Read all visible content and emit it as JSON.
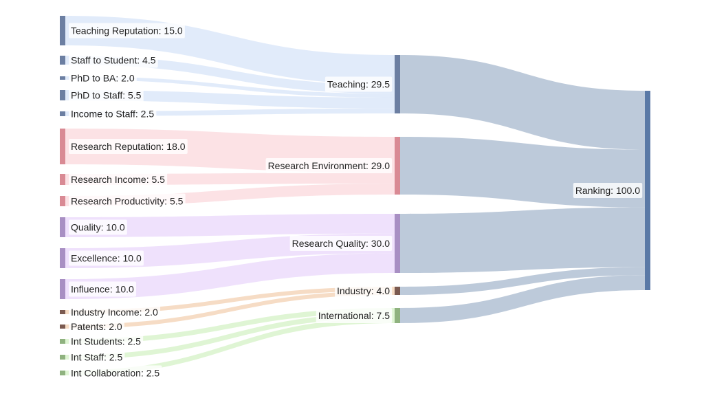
{
  "chart_data": {
    "type": "sankey",
    "nodes": [
      {
        "id": "teaching_rep",
        "label": "Teaching Reputation: 15.0",
        "name": "Teaching Reputation",
        "value": 15.0,
        "group": "teaching"
      },
      {
        "id": "staff_student",
        "label": "Staff to Student: 4.5",
        "name": "Staff to Student",
        "value": 4.5,
        "group": "teaching"
      },
      {
        "id": "phd_ba",
        "label": "PhD to BA: 2.0",
        "name": "PhD to BA",
        "value": 2.0,
        "group": "teaching"
      },
      {
        "id": "phd_staff",
        "label": "PhD to Staff: 5.5",
        "name": "PhD to Staff",
        "value": 5.5,
        "group": "teaching"
      },
      {
        "id": "income_staff",
        "label": "Income to Staff: 2.5",
        "name": "Income to Staff",
        "value": 2.5,
        "group": "teaching"
      },
      {
        "id": "research_rep",
        "label": "Research Reputation: 18.0",
        "name": "Research Reputation",
        "value": 18.0,
        "group": "research_env"
      },
      {
        "id": "research_income",
        "label": "Research Income: 5.5",
        "name": "Research Income",
        "value": 5.5,
        "group": "research_env"
      },
      {
        "id": "research_prod",
        "label": "Research Productivity: 5.5",
        "name": "Research Productivity",
        "value": 5.5,
        "group": "research_env"
      },
      {
        "id": "quality",
        "label": "Quality: 10.0",
        "name": "Quality",
        "value": 10.0,
        "group": "research_quality"
      },
      {
        "id": "excellence",
        "label": "Excellence: 10.0",
        "name": "Excellence",
        "value": 10.0,
        "group": "research_quality"
      },
      {
        "id": "influence",
        "label": "Influence: 10.0",
        "name": "Influence",
        "value": 10.0,
        "group": "research_quality"
      },
      {
        "id": "industry_income",
        "label": "Industry Income: 2.0",
        "name": "Industry Income",
        "value": 2.0,
        "group": "industry"
      },
      {
        "id": "patents",
        "label": "Patents: 2.0",
        "name": "Patents",
        "value": 2.0,
        "group": "industry"
      },
      {
        "id": "int_students",
        "label": "Int Students: 2.5",
        "name": "Int Students",
        "value": 2.5,
        "group": "international"
      },
      {
        "id": "int_staff",
        "label": "Int Staff: 2.5",
        "name": "Int Staff",
        "value": 2.5,
        "group": "international"
      },
      {
        "id": "int_collab",
        "label": "Int Collaboration: 2.5",
        "name": "Int Collaboration",
        "value": 2.5,
        "group": "international"
      },
      {
        "id": "teaching",
        "label": "Teaching: 29.5",
        "name": "Teaching",
        "value": 29.5,
        "group": "teaching"
      },
      {
        "id": "research_env",
        "label": "Research Environment: 29.0",
        "name": "Research Environment",
        "value": 29.0,
        "group": "research_env"
      },
      {
        "id": "research_quality",
        "label": "Research Quality: 30.0",
        "name": "Research Quality",
        "value": 30.0,
        "group": "research_quality"
      },
      {
        "id": "industry",
        "label": "Industry: 4.0",
        "name": "Industry",
        "value": 4.0,
        "group": "industry"
      },
      {
        "id": "international",
        "label": "International: 7.5",
        "name": "International",
        "value": 7.5,
        "group": "international"
      },
      {
        "id": "ranking",
        "label": "Ranking: 100.0",
        "name": "Ranking",
        "value": 100.0,
        "group": "ranking"
      }
    ],
    "links": [
      {
        "source": "teaching_rep",
        "target": "teaching",
        "value": 15.0
      },
      {
        "source": "staff_student",
        "target": "teaching",
        "value": 4.5
      },
      {
        "source": "phd_ba",
        "target": "teaching",
        "value": 2.0
      },
      {
        "source": "phd_staff",
        "target": "teaching",
        "value": 5.5
      },
      {
        "source": "income_staff",
        "target": "teaching",
        "value": 2.5
      },
      {
        "source": "research_rep",
        "target": "research_env",
        "value": 18.0
      },
      {
        "source": "research_income",
        "target": "research_env",
        "value": 5.5
      },
      {
        "source": "research_prod",
        "target": "research_env",
        "value": 5.5
      },
      {
        "source": "quality",
        "target": "research_quality",
        "value": 10.0
      },
      {
        "source": "excellence",
        "target": "research_quality",
        "value": 10.0
      },
      {
        "source": "influence",
        "target": "research_quality",
        "value": 10.0
      },
      {
        "source": "industry_income",
        "target": "industry",
        "value": 2.0
      },
      {
        "source": "patents",
        "target": "industry",
        "value": 2.0
      },
      {
        "source": "int_students",
        "target": "international",
        "value": 2.5
      },
      {
        "source": "int_staff",
        "target": "international",
        "value": 2.5
      },
      {
        "source": "int_collab",
        "target": "international",
        "value": 2.5
      },
      {
        "source": "teaching",
        "target": "ranking",
        "value": 29.5
      },
      {
        "source": "research_env",
        "target": "ranking",
        "value": 29.0
      },
      {
        "source": "research_quality",
        "target": "ranking",
        "value": 30.0
      },
      {
        "source": "industry",
        "target": "ranking",
        "value": 4.0
      },
      {
        "source": "international",
        "target": "ranking",
        "value": 7.5
      }
    ],
    "colors": {
      "teaching": {
        "node": "#6c7fa2",
        "link": "#dce8f9"
      },
      "research_env": {
        "node": "#d98a94",
        "link": "#fbdde1"
      },
      "research_quality": {
        "node": "#a88fc3",
        "link": "#ecdcfb"
      },
      "industry": {
        "node": "#7b5a50",
        "link": "#f4d6bb"
      },
      "international": {
        "node": "#8fb27f",
        "link": "#d9f3cd"
      },
      "ranking": {
        "node": "#5a79a6",
        "link": "#b2c1d4"
      }
    }
  }
}
